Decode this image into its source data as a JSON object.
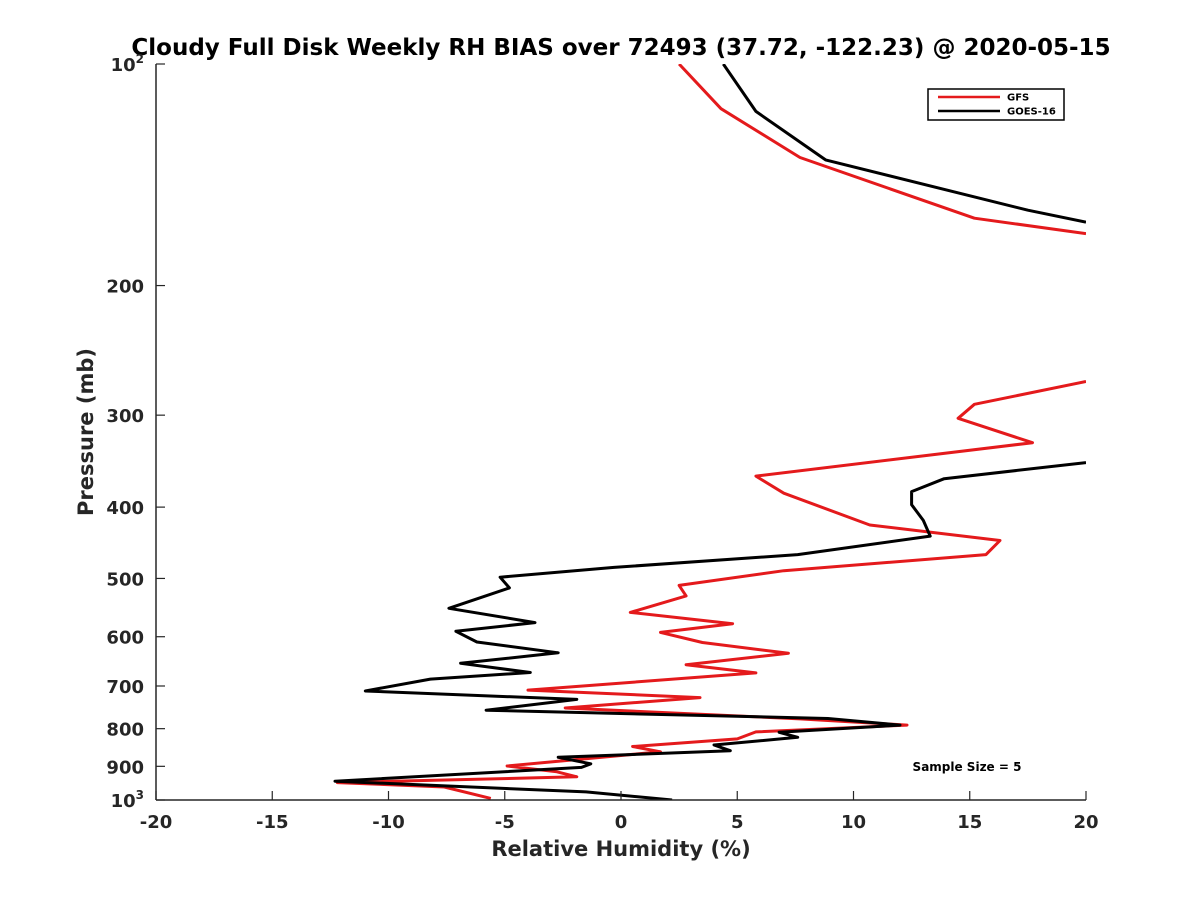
{
  "chart_data": {
    "type": "line",
    "title": "Cloudy Full Disk Weekly RH BIAS over 72493 (37.72, -122.23) @ 2020-05-15",
    "xlabel": "Relative Humidity (%)",
    "ylabel": "Pressure (mb)",
    "xlim": [
      -20,
      20
    ],
    "ylim": [
      100,
      1000
    ],
    "y_scale": "log",
    "y_reversed": true,
    "grid": false,
    "legend_position": "top-right",
    "x_ticks": [
      -20,
      -15,
      -10,
      -5,
      0,
      5,
      10,
      15,
      20
    ],
    "x_tick_labels": [
      "-20",
      "-15",
      "-10",
      "-5",
      "0",
      "5",
      "10",
      "15",
      "20"
    ],
    "y_ticks": [
      {
        "value": 100,
        "base": "10",
        "exp": "2"
      },
      {
        "value": 200,
        "base": "200",
        "exp": ""
      },
      {
        "value": 300,
        "base": "300",
        "exp": ""
      },
      {
        "value": 400,
        "base": "400",
        "exp": ""
      },
      {
        "value": 500,
        "base": "500",
        "exp": ""
      },
      {
        "value": 600,
        "base": "600",
        "exp": ""
      },
      {
        "value": 700,
        "base": "700",
        "exp": ""
      },
      {
        "value": 800,
        "base": "800",
        "exp": ""
      },
      {
        "value": 900,
        "base": "900",
        "exp": ""
      },
      {
        "value": 1000,
        "base": "10",
        "exp": "3"
      }
    ],
    "annotation": "Sample Size = 5",
    "series": [
      {
        "name": "GFS",
        "color": "#e41a1c",
        "segments": [
          [
            [
              2.5,
              100
            ],
            [
              4.3,
              115
            ],
            [
              7.7,
              134
            ],
            [
              15.2,
              162
            ],
            [
              20,
              170
            ]
          ],
          [
            [
              20,
              270
            ],
            [
              15.2,
              290
            ],
            [
              14.5,
              303
            ],
            [
              17.7,
              327
            ],
            [
              5.8,
              363
            ],
            [
              7.0,
              383
            ],
            [
              10.7,
              423
            ],
            [
              16.3,
              444
            ],
            [
              15.7,
              464
            ],
            [
              7.0,
              488
            ],
            [
              2.5,
              511
            ],
            [
              2.8,
              528
            ],
            [
              0.4,
              556
            ],
            [
              4.8,
              576
            ],
            [
              1.7,
              592
            ],
            [
              3.5,
              611
            ],
            [
              7.2,
              632
            ],
            [
              2.8,
              655
            ],
            [
              5.8,
              672
            ],
            [
              -4.0,
              709
            ],
            [
              3.4,
              726
            ],
            [
              -2.4,
              750
            ],
            [
              7.7,
              776
            ],
            [
              12.3,
              791
            ],
            [
              5.8,
              808
            ],
            [
              5.0,
              826
            ],
            [
              0.5,
              846
            ],
            [
              1.7,
              860
            ],
            [
              -4.9,
              899
            ],
            [
              -2.8,
              915
            ],
            [
              -1.9,
              930
            ],
            [
              -12.2,
              947
            ],
            [
              -7.6,
              960
            ],
            [
              -5.6,
              995
            ]
          ]
        ]
      },
      {
        "name": "GOES-16",
        "color": "#000000",
        "segments": [
          [
            [
              4.4,
              100
            ],
            [
              5.8,
              116
            ],
            [
              8.8,
              135
            ],
            [
              17.5,
              158
            ],
            [
              20,
              164
            ]
          ],
          [
            [
              20,
              348
            ],
            [
              13.9,
              366
            ],
            [
              12.5,
              381
            ],
            [
              12.5,
              397
            ],
            [
              13.0,
              417
            ],
            [
              13.3,
              438
            ],
            [
              7.6,
              464
            ],
            [
              -0.3,
              483
            ],
            [
              -5.2,
              498
            ],
            [
              -4.8,
              515
            ],
            [
              -7.4,
              549
            ],
            [
              -3.7,
              574
            ],
            [
              -7.1,
              590
            ],
            [
              -6.2,
              610
            ],
            [
              -2.7,
              631
            ],
            [
              -6.9,
              652
            ],
            [
              -3.9,
              671
            ],
            [
              -8.2,
              685
            ],
            [
              -11.0,
              711
            ],
            [
              -1.9,
              730
            ],
            [
              -5.8,
              755
            ],
            [
              8.9,
              775
            ],
            [
              12.0,
              791
            ],
            [
              6.8,
              809
            ],
            [
              7.6,
              822
            ],
            [
              4.0,
              842
            ],
            [
              4.7,
              857
            ],
            [
              -2.7,
              875
            ],
            [
              -1.3,
              893
            ],
            [
              -1.7,
              903
            ],
            [
              -12.3,
              943
            ],
            [
              -1.5,
              975
            ],
            [
              2.2,
              1000
            ]
          ]
        ]
      }
    ]
  }
}
